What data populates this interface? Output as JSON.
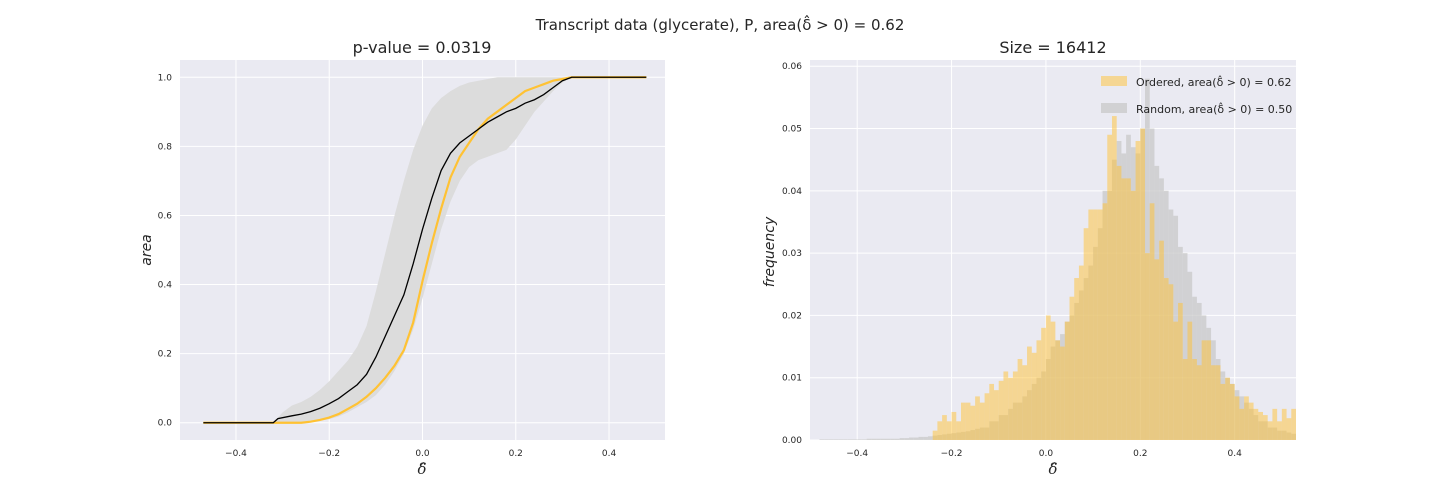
{
  "figure": {
    "suptitle": "Transcript data (glycerate), P, area(δ̂ > 0) = 0.62",
    "colors": {
      "ordered": "#ffc233",
      "random": "#c8c8c8",
      "random_line": "#000000",
      "band": "#dcdcdc",
      "axes_bg": "#eaeaf2",
      "grid": "#ffffff"
    }
  },
  "chart_data": [
    {
      "type": "line",
      "title": "p-value = 0.0319",
      "xlabel": "δ̂",
      "ylabel": "area",
      "xlim": [
        -0.52,
        0.52
      ],
      "ylim": [
        -0.05,
        1.05
      ],
      "xticks": [
        -0.4,
        -0.2,
        0.0,
        0.2,
        0.4
      ],
      "xtick_labels": [
        "−0.4",
        "−0.2",
        "0.0",
        "0.2",
        "0.4"
      ],
      "yticks": [
        0.0,
        0.2,
        0.4,
        0.6,
        0.8,
        1.0
      ],
      "ytick_labels": [
        "0.0",
        "0.2",
        "0.4",
        "0.6",
        "0.8",
        "1.0"
      ],
      "grid": true,
      "series": [
        {
          "key": "ordered",
          "x": [
            -0.47,
            -0.31,
            -0.26,
            -0.24,
            -0.22,
            -0.2,
            -0.18,
            -0.16,
            -0.14,
            -0.12,
            -0.1,
            -0.08,
            -0.06,
            -0.04,
            -0.02,
            0.0,
            0.02,
            0.04,
            0.06,
            0.08,
            0.1,
            0.12,
            0.14,
            0.16,
            0.18,
            0.2,
            0.22,
            0.24,
            0.26,
            0.28,
            0.3,
            0.32,
            0.48
          ],
          "y": [
            0.0,
            0.0,
            0.0,
            0.003,
            0.008,
            0.015,
            0.025,
            0.04,
            0.055,
            0.075,
            0.1,
            0.13,
            0.165,
            0.21,
            0.29,
            0.41,
            0.52,
            0.62,
            0.71,
            0.77,
            0.81,
            0.85,
            0.88,
            0.9,
            0.92,
            0.94,
            0.96,
            0.97,
            0.98,
            0.99,
            0.995,
            1.0,
            1.0
          ]
        },
        {
          "key": "random_mean",
          "x": [
            -0.47,
            -0.32,
            -0.31,
            -0.28,
            -0.26,
            -0.24,
            -0.22,
            -0.2,
            -0.18,
            -0.16,
            -0.14,
            -0.12,
            -0.1,
            -0.08,
            -0.06,
            -0.04,
            -0.02,
            0.0,
            0.02,
            0.04,
            0.06,
            0.08,
            0.1,
            0.12,
            0.14,
            0.16,
            0.18,
            0.2,
            0.22,
            0.24,
            0.26,
            0.28,
            0.3,
            0.32,
            0.48
          ],
          "y": [
            0.0,
            0.0,
            0.012,
            0.02,
            0.025,
            0.032,
            0.042,
            0.055,
            0.07,
            0.09,
            0.11,
            0.14,
            0.19,
            0.25,
            0.31,
            0.37,
            0.46,
            0.56,
            0.65,
            0.73,
            0.78,
            0.81,
            0.83,
            0.85,
            0.87,
            0.885,
            0.9,
            0.91,
            0.925,
            0.935,
            0.95,
            0.97,
            0.99,
            1.0,
            1.0
          ]
        }
      ],
      "band": {
        "key": "random_range",
        "x": [
          -0.47,
          -0.32,
          -0.3,
          -0.28,
          -0.26,
          -0.24,
          -0.22,
          -0.2,
          -0.18,
          -0.16,
          -0.14,
          -0.12,
          -0.1,
          -0.08,
          -0.06,
          -0.04,
          -0.02,
          0.0,
          0.02,
          0.04,
          0.06,
          0.08,
          0.1,
          0.12,
          0.14,
          0.16,
          0.18,
          0.2,
          0.22,
          0.24,
          0.26,
          0.28,
          0.3,
          0.32,
          0.48
        ],
        "lower": [
          0.0,
          0.0,
          0.0,
          0.0,
          0.0,
          0.002,
          0.006,
          0.01,
          0.018,
          0.03,
          0.045,
          0.06,
          0.08,
          0.11,
          0.15,
          0.2,
          0.27,
          0.36,
          0.46,
          0.56,
          0.64,
          0.7,
          0.74,
          0.76,
          0.77,
          0.78,
          0.79,
          0.82,
          0.86,
          0.9,
          0.93,
          0.96,
          0.985,
          1.0,
          1.0
        ],
        "upper": [
          0.0,
          0.0,
          0.03,
          0.05,
          0.06,
          0.075,
          0.095,
          0.12,
          0.15,
          0.18,
          0.22,
          0.28,
          0.38,
          0.49,
          0.6,
          0.7,
          0.79,
          0.86,
          0.91,
          0.94,
          0.96,
          0.975,
          0.985,
          0.99,
          0.995,
          1.0,
          1.0,
          1.0,
          1.0,
          1.0,
          1.0,
          1.0,
          1.0,
          1.0,
          1.0
        ]
      }
    },
    {
      "type": "bar",
      "title": "Size = 16412",
      "xlabel": "δ̂",
      "ylabel": "frequency",
      "xlim": [
        -0.5,
        0.53
      ],
      "ylim": [
        0.0,
        0.061
      ],
      "xticks": [
        -0.4,
        -0.2,
        0.0,
        0.2,
        0.4
      ],
      "xtick_labels": [
        "−0.4",
        "−0.2",
        "0.0",
        "0.2",
        "0.4"
      ],
      "yticks": [
        0.0,
        0.01,
        0.02,
        0.03,
        0.04,
        0.05,
        0.06
      ],
      "ytick_labels": [
        "0.00",
        "0.01",
        "0.02",
        "0.03",
        "0.04",
        "0.05",
        "0.06"
      ],
      "grid": true,
      "legend_position": "upper-right",
      "legend": [
        {
          "key": "ordered",
          "label": "Ordered, area(δ̂ > 0) = 0.62"
        },
        {
          "key": "random",
          "label": "Random, area(δ̂ > 0) = 0.50"
        }
      ],
      "bin_width": 0.01,
      "ordered_bins_start": -0.24,
      "ordered_values": [
        0.0015,
        0.003,
        0.004,
        0.003,
        0.0045,
        0.003,
        0.006,
        0.006,
        0.0055,
        0.007,
        0.006,
        0.0075,
        0.009,
        0.008,
        0.0095,
        0.011,
        0.01,
        0.011,
        0.013,
        0.012,
        0.015,
        0.014,
        0.016,
        0.018,
        0.02,
        0.019,
        0.016,
        0.015,
        0.019,
        0.023,
        0.026,
        0.028,
        0.034,
        0.037,
        0.037,
        0.037,
        0.038,
        0.049,
        0.052,
        0.044,
        0.042,
        0.042,
        0.04,
        0.048,
        0.05,
        0.03,
        0.038,
        0.029,
        0.032,
        0.026,
        0.025,
        0.019,
        0.022,
        0.013,
        0.019,
        0.013,
        0.012,
        0.016,
        0.016,
        0.012,
        0.012,
        0.009,
        0.01,
        0.009,
        0.007,
        0.005,
        0.007,
        0.006,
        0.005,
        0.0045,
        0.004,
        0.003,
        0.005,
        0.003,
        0.005,
        0.0035,
        0.005,
        0.003,
        0.003,
        0.0025,
        0.002,
        0.003,
        0.002,
        0.003,
        0.002,
        0.005,
        0.0025,
        0.0045,
        0.002,
        0.0015,
        0.001,
        0.0045,
        0.001,
        0.003,
        0.001,
        0.003
      ],
      "random_bins_start": -0.48,
      "random_values": [
        0.0001,
        0.0001,
        0.0001,
        0.0001,
        0.0001,
        0.0001,
        0.0001,
        0.0001,
        0.0001,
        0.0001,
        0.0002,
        0.0002,
        0.0002,
        0.0002,
        0.0002,
        0.0002,
        0.0002,
        0.0003,
        0.0003,
        0.0004,
        0.0004,
        0.0005,
        0.0005,
        0.0006,
        0.0007,
        0.0008,
        0.0009,
        0.001,
        0.0011,
        0.0012,
        0.0013,
        0.0014,
        0.0016,
        0.0018,
        0.002,
        0.002,
        0.003,
        0.003,
        0.004,
        0.004,
        0.005,
        0.006,
        0.006,
        0.007,
        0.008,
        0.009,
        0.01,
        0.011,
        0.013,
        0.015,
        0.016,
        0.017,
        0.019,
        0.02,
        0.022,
        0.024,
        0.026,
        0.028,
        0.031,
        0.034,
        0.04,
        0.04,
        0.045,
        0.048,
        0.046,
        0.049,
        0.047,
        0.046,
        0.05,
        0.058,
        0.05,
        0.044,
        0.042,
        0.04,
        0.037,
        0.036,
        0.031,
        0.03,
        0.027,
        0.023,
        0.022,
        0.02,
        0.018,
        0.016,
        0.013,
        0.011,
        0.01,
        0.009,
        0.008,
        0.007,
        0.006,
        0.005,
        0.004,
        0.003,
        0.003,
        0.002,
        0.002,
        0.0015,
        0.0015,
        0.0012,
        0.001,
        0.0008,
        0.0007,
        0.0006,
        0.0005,
        0.0005,
        0.0004,
        0.0003,
        0.0003,
        0.0003,
        0.0002,
        0.0002,
        0.0002,
        0.0002,
        0.0001,
        0.0001,
        0.0001,
        0.0001,
        0.0001,
        0.0001,
        0.0001,
        0.0001,
        0.0001,
        0.0001,
        0.0001,
        0.0001,
        0.0001,
        0.0001,
        0.0001,
        0.0001,
        0.0001,
        0.0001,
        0.0001,
        0.0001,
        0.0001,
        0.0001,
        0.0001,
        0.0001,
        0.0001,
        0.0001,
        0.0001,
        0.0001,
        0.0001,
        0.0001,
        0.0001,
        0.0001,
        0.0001,
        0.0001
      ]
    }
  ]
}
